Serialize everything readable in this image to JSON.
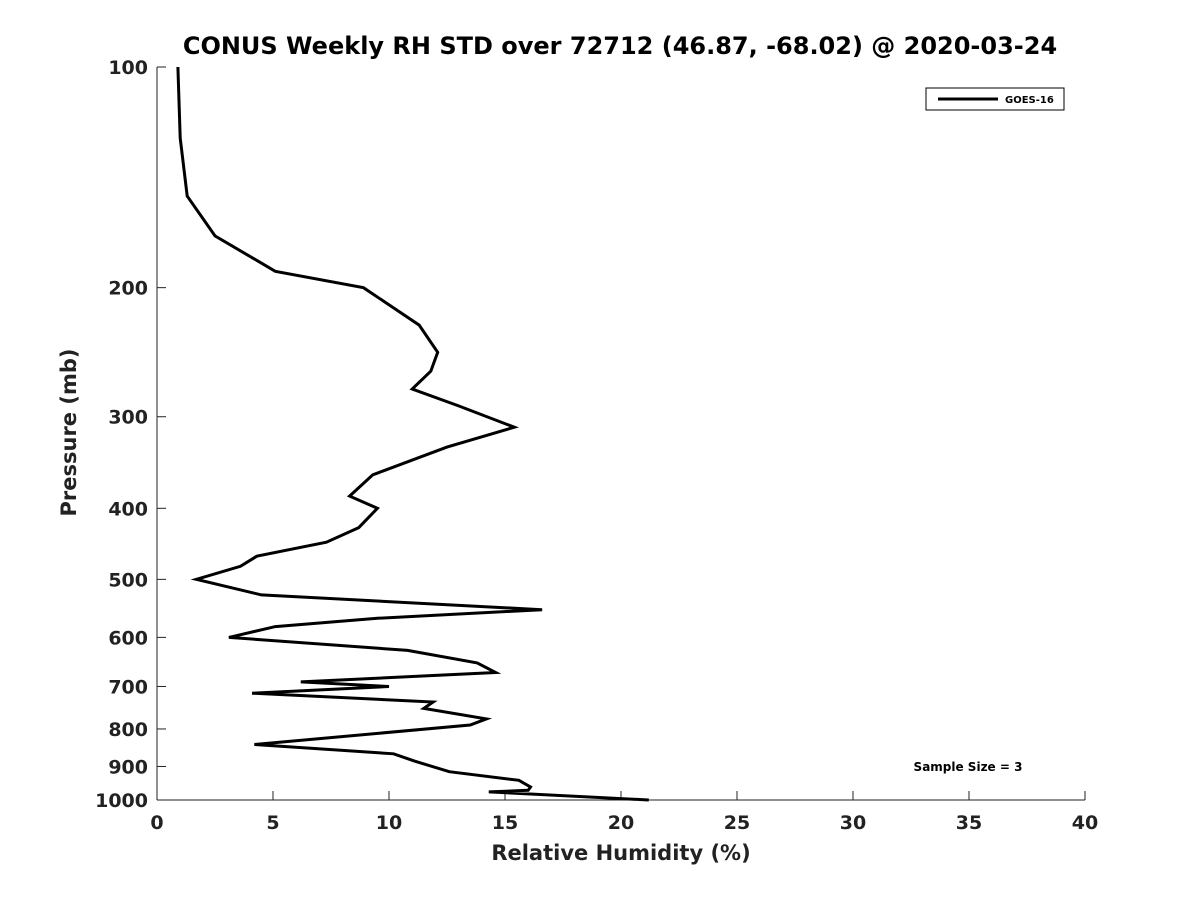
{
  "chart_data": {
    "type": "line",
    "title": "CONUS Weekly RH STD over 72712 (46.87, -68.02) @ 2020-03-24",
    "xlabel": "Relative Humidity (%)",
    "ylabel": "Pressure (mb)",
    "xlim": [
      0,
      40
    ],
    "ylim": [
      100,
      1000
    ],
    "y_scale": "log",
    "y_inverted": true,
    "x_ticks": [
      0,
      5,
      10,
      15,
      20,
      25,
      30,
      35,
      40
    ],
    "x_tick_labels": [
      "0",
      "5",
      "10",
      "15",
      "20",
      "25",
      "30",
      "35",
      "40"
    ],
    "y_ticks": [
      100,
      200,
      300,
      400,
      500,
      600,
      700,
      800,
      900,
      1000
    ],
    "y_tick_labels": [
      "100",
      "200",
      "300",
      "400",
      "500",
      "600",
      "700",
      "800",
      "900",
      "1000"
    ],
    "grid": false,
    "legend_position": "top-right",
    "annotation": "Sample Size = 3",
    "series": [
      {
        "name": "GOES-16",
        "color": "#000000",
        "x": [
          0.9,
          1.0,
          1.3,
          2.5,
          5.1,
          8.9,
          11.3,
          12.1,
          11.8,
          11.0,
          13.0,
          15.4,
          12.5,
          9.3,
          8.3,
          9.5,
          8.7,
          7.3,
          4.3,
          3.6,
          1.7,
          4.5,
          16.6,
          9.5,
          5.1,
          3.1,
          10.8,
          13.8,
          14.6,
          6.2,
          10.0,
          4.1,
          11.9,
          11.5,
          14.2,
          13.5,
          4.2,
          10.2,
          11.1,
          12.6,
          15.6,
          16.1,
          16.0,
          14.3,
          21.2
        ],
        "y": [
          100,
          125,
          150,
          170,
          190,
          200,
          225,
          245,
          260,
          275,
          290,
          310,
          330,
          360,
          385,
          400,
          425,
          445,
          465,
          480,
          500,
          525,
          550,
          565,
          580,
          600,
          625,
          650,
          670,
          690,
          700,
          715,
          735,
          750,
          775,
          790,
          840,
          865,
          885,
          915,
          940,
          960,
          970,
          975,
          1000
        ]
      }
    ]
  }
}
